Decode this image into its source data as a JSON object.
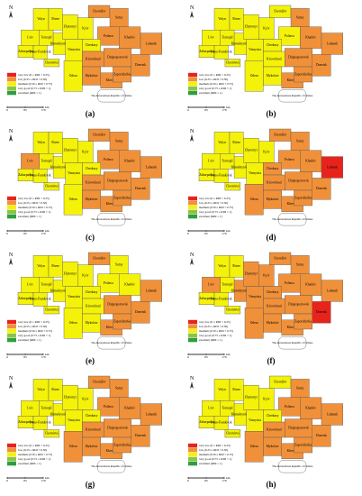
{
  "regions": [
    "Volyn",
    "Rivne",
    "Lviv",
    "Zakarpattia",
    "Ivano-Frankivsk",
    "Chernivtsi",
    "Ternopil",
    "Khmelnytskyi",
    "Vinnytsia",
    "Zhytomyr",
    "Kyiv",
    "Chernihiv",
    "Sumy",
    "Poltava",
    "Cherkasy",
    "Kharkiv",
    "Luhansk",
    "Donetsk",
    "Dnipropetrovsk",
    "Kirovohrad",
    "Odesa",
    "Mykolaiv",
    "Kherson",
    "Zaporizhzhia"
  ],
  "crimea": "The Autonomous Republic of Crimea",
  "north": "N",
  "legend": [
    {
      "key": "vl",
      "label": "very low (0 ≤ RDI < 0.25)",
      "color": "#e8231c"
    },
    {
      "key": "l",
      "label": "low (0.25 ≤ RDI < 0.50)",
      "color": "#f0913a"
    },
    {
      "key": "m",
      "label": "medium (0.50 ≤ RDI < 0.75)",
      "color": "#f5f20a"
    },
    {
      "key": "g",
      "label": "very good (0.75 ≤ RDI < 1)",
      "color": "#8bc34a"
    },
    {
      "key": "e",
      "label": "excellent (RDI = 1)",
      "color": "#2e9e3e"
    }
  ],
  "scale": {
    "ticks": [
      0,
      85,
      170
    ],
    "unit": "km"
  },
  "panels": [
    {
      "label": "(a)",
      "levels": [
        "m",
        "m",
        "m",
        "m",
        "m",
        "m",
        "m",
        "m",
        "m",
        "m",
        "m",
        "l",
        "l",
        "l",
        "m",
        "l",
        "l",
        "l",
        "l",
        "l",
        "m",
        "l",
        "l",
        "l"
      ]
    },
    {
      "label": "(b)",
      "levels": [
        "m",
        "m",
        "m",
        "m",
        "m",
        "m",
        "m",
        "m",
        "m",
        "m",
        "m",
        "m",
        "l",
        "m",
        "m",
        "l",
        "l",
        "l",
        "l",
        "m",
        "m",
        "m",
        "l",
        "l"
      ]
    },
    {
      "label": "(c)",
      "levels": [
        "m",
        "m",
        "l",
        "m",
        "m",
        "m",
        "m",
        "m",
        "m",
        "m",
        "m",
        "l",
        "l",
        "l",
        "m",
        "l",
        "l",
        "l",
        "l",
        "l",
        "m",
        "l",
        "l",
        "l"
      ]
    },
    {
      "label": "(d)",
      "levels": [
        "m",
        "m",
        "m",
        "m",
        "m",
        "m",
        "m",
        "m",
        "m",
        "m",
        "m",
        "l",
        "l",
        "l",
        "l",
        "l",
        "vl",
        "l",
        "l",
        "l",
        "l",
        "l",
        "l",
        "l"
      ]
    },
    {
      "label": "(e)",
      "levels": [
        "m",
        "m",
        "m",
        "m",
        "m",
        "m",
        "m",
        "m",
        "m",
        "m",
        "m",
        "l",
        "m",
        "m",
        "m",
        "m",
        "l",
        "l",
        "l",
        "m",
        "m",
        "m",
        "l",
        "l"
      ]
    },
    {
      "label": "(f)",
      "levels": [
        "m",
        "m",
        "l",
        "m",
        "m",
        "m",
        "m",
        "l",
        "l",
        "l",
        "l",
        "l",
        "l",
        "l",
        "l",
        "l",
        "l",
        "vl",
        "l",
        "l",
        "l",
        "l",
        "l",
        "l"
      ]
    },
    {
      "label": "(g)",
      "levels": [
        "m",
        "m",
        "m",
        "m",
        "m",
        "m",
        "m",
        "m",
        "m",
        "m",
        "m",
        "l",
        "l",
        "l",
        "m",
        "l",
        "l",
        "l",
        "l",
        "l",
        "l",
        "l",
        "l",
        "l"
      ]
    },
    {
      "label": "(h)",
      "levels": [
        "m",
        "m",
        "m",
        "m",
        "m",
        "m",
        "m",
        "m",
        "m",
        "m",
        "m",
        "m",
        "l",
        "l",
        "m",
        "l",
        "l",
        "l",
        "l",
        "l",
        "l",
        "l",
        "l",
        "l"
      ]
    }
  ]
}
